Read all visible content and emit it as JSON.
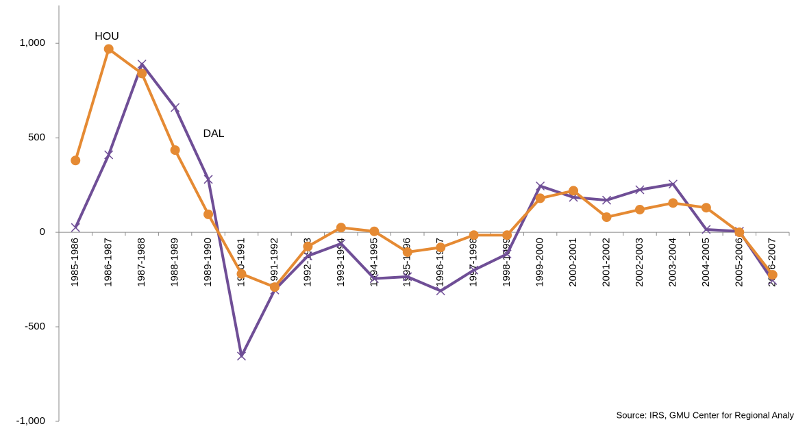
{
  "chart_data": {
    "type": "line",
    "categories": [
      "1985-1986",
      "1986-1987",
      "1987-1988",
      "1988-1989",
      "1989-1990",
      "1990-1991",
      "1991-1992",
      "1992-1993",
      "1993-1994",
      "1994-1995",
      "1995-1996",
      "1996-1997",
      "1997-1998",
      "1998-1999",
      "1999-2000",
      "2000-2001",
      "2001-2002",
      "2002-2003",
      "2003-2004",
      "2004-2005",
      "2005-2006",
      "2006-2007"
    ],
    "series": [
      {
        "name": "DAL",
        "color": "#6f4e96",
        "marker": "x",
        "values": [
          25,
          410,
          890,
          660,
          280,
          -655,
          -305,
          -125,
          -60,
          -245,
          -235,
          -310,
          -200,
          -115,
          245,
          185,
          170,
          225,
          255,
          15,
          5,
          -255
        ]
      },
      {
        "name": "HOU",
        "color": "#e58a33",
        "marker": "circle",
        "values": [
          380,
          970,
          840,
          435,
          95,
          -220,
          -290,
          -75,
          25,
          5,
          -105,
          -80,
          -15,
          -15,
          180,
          220,
          80,
          120,
          155,
          130,
          0,
          -225
        ]
      }
    ],
    "ylim": [
      -1000,
      1200
    ],
    "yticks": [
      {
        "value": -1000,
        "label": "-1,000"
      },
      -500,
      0,
      500,
      {
        "value": 1000,
        "label": "1,000"
      }
    ],
    "source": "Source: IRS, GMU Center for Regional Analy"
  }
}
